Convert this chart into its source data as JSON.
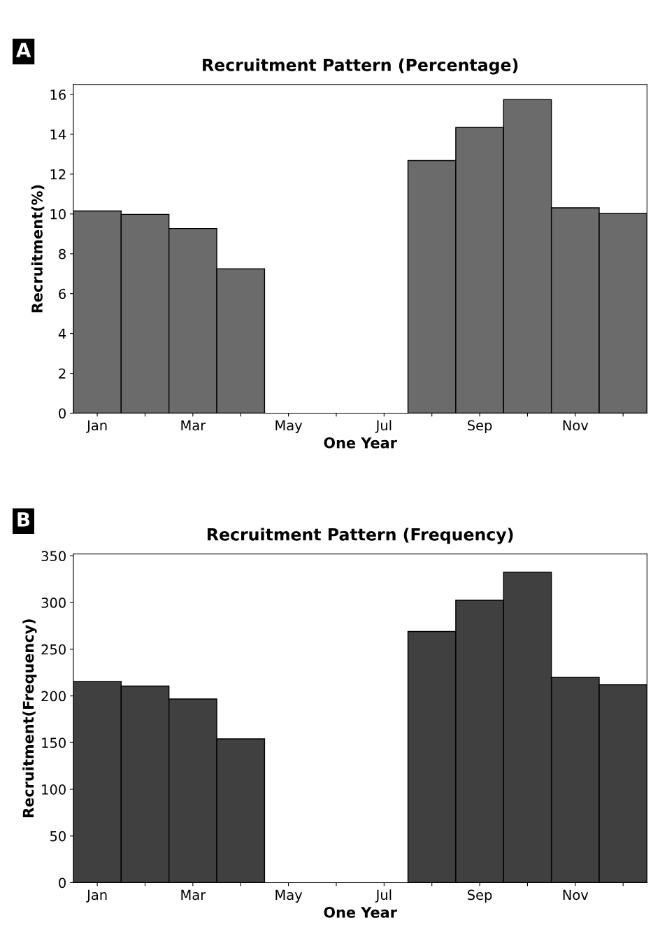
{
  "chart_data": [
    {
      "type": "bar",
      "title": "Recruitment Pattern (Percentage)",
      "xlabel": "One Year",
      "ylabel": "Recruitment(%)",
      "annotations": [
        "A"
      ],
      "categories": [
        "Jan",
        null,
        "Mar",
        null,
        "May",
        null,
        "Jul",
        null,
        "Sep",
        null,
        "Nov",
        null
      ],
      "values": [
        10.15,
        9.98,
        9.27,
        7.25,
        null,
        null,
        null,
        12.68,
        14.34,
        15.74,
        10.31,
        10.02
      ],
      "color": "#6b6b6b",
      "ylim": [
        0,
        16.5
      ],
      "yticks": [
        0,
        2,
        4,
        6,
        8,
        10,
        12,
        14,
        16
      ],
      "grid": false,
      "legend": false
    },
    {
      "type": "bar",
      "title": "Recruitment Pattern (Frequency)",
      "xlabel": "One Year",
      "ylabel": "Recruitment(Frequency)",
      "annotations": [
        "B"
      ],
      "categories": [
        "Jan",
        null,
        "Mar",
        null,
        "May",
        null,
        "Jul",
        null,
        "Sep",
        null,
        "Nov",
        null
      ],
      "values": [
        215.5,
        210.6,
        196.7,
        154,
        null,
        null,
        null,
        269,
        302.6,
        332.6,
        219.7,
        212
      ],
      "color": "#404040",
      "ylim": [
        0,
        352
      ],
      "yticks": [
        0,
        50,
        100,
        150,
        200,
        250,
        300,
        350
      ],
      "grid": false,
      "legend": false
    }
  ]
}
